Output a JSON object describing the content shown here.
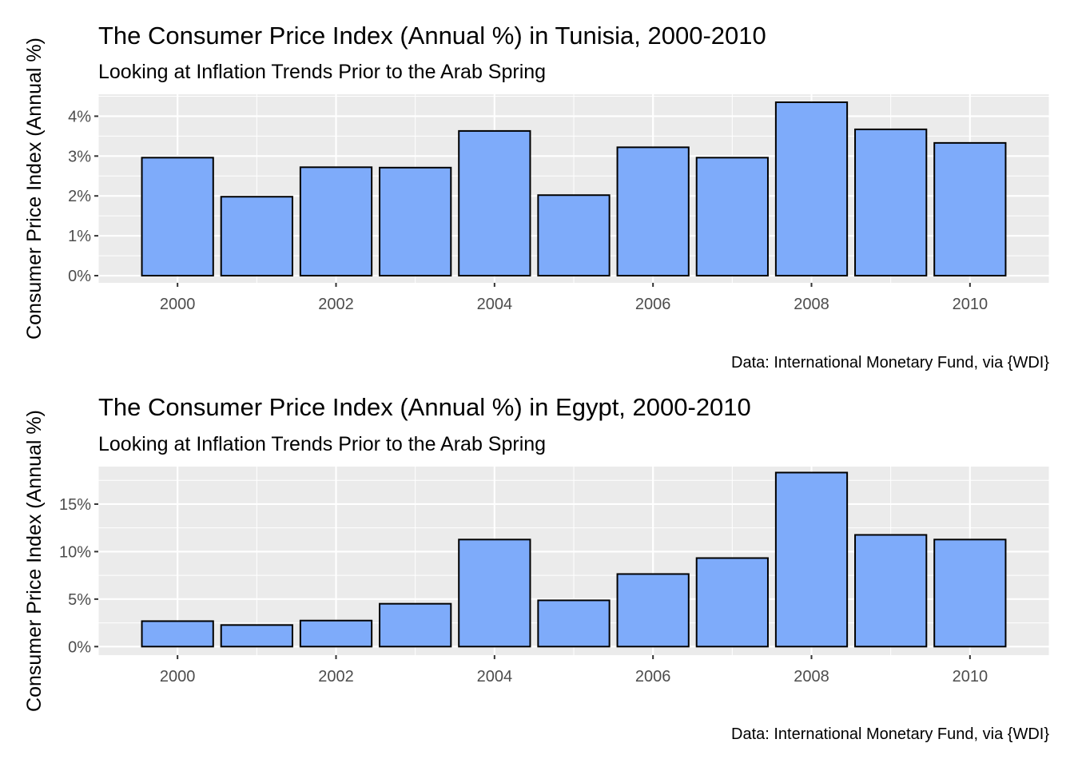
{
  "chart_data": [
    {
      "type": "bar",
      "title": "The Consumer Price Index (Annual %) in Tunisia, 2000-2010",
      "subtitle": "Looking at Inflation Trends Prior to the Arab Spring",
      "caption": "Data: International Monetary Fund, via {WDI}",
      "xlabel": "",
      "ylabel": "Consumer Price Index (Annual %)",
      "x": [
        2000,
        2001,
        2002,
        2003,
        2004,
        2005,
        2006,
        2007,
        2008,
        2009,
        2010
      ],
      "values": [
        2.96,
        1.98,
        2.72,
        2.71,
        3.63,
        2.02,
        3.22,
        2.96,
        4.35,
        3.67,
        3.33
      ],
      "xlim": [
        1999.0,
        2011.0
      ],
      "ylim": [
        -0.18,
        4.55
      ],
      "x_ticks": [
        2000,
        2002,
        2004,
        2006,
        2008,
        2010
      ],
      "y_ticks": [
        0,
        1,
        2,
        3,
        4
      ],
      "y_tick_labels": [
        "0%",
        "1%",
        "2%",
        "3%",
        "4%"
      ],
      "bar_color": "#7eabfa",
      "grid": true,
      "legend": "none"
    },
    {
      "type": "bar",
      "title": "The Consumer Price Index (Annual %) in Egypt, 2000-2010",
      "subtitle": "Looking at Inflation Trends Prior to the Arab Spring",
      "caption": "Data: International Monetary Fund, via {WDI}",
      "xlabel": "",
      "ylabel": "Consumer Price Index (Annual %)",
      "x": [
        2000,
        2001,
        2002,
        2003,
        2004,
        2005,
        2006,
        2007,
        2008,
        2009,
        2010
      ],
      "values": [
        2.68,
        2.27,
        2.74,
        4.51,
        11.27,
        4.87,
        7.64,
        9.32,
        18.32,
        11.76,
        11.27
      ],
      "xlim": [
        1999.0,
        2011.0
      ],
      "ylim": [
        -0.9,
        18.95
      ],
      "x_ticks": [
        2000,
        2002,
        2004,
        2006,
        2008,
        2010
      ],
      "y_ticks": [
        0,
        5,
        10,
        15
      ],
      "y_tick_labels": [
        "0%",
        "5%",
        "10%",
        "15%"
      ],
      "bar_color": "#7eabfa",
      "grid": true,
      "legend": "none"
    }
  ]
}
